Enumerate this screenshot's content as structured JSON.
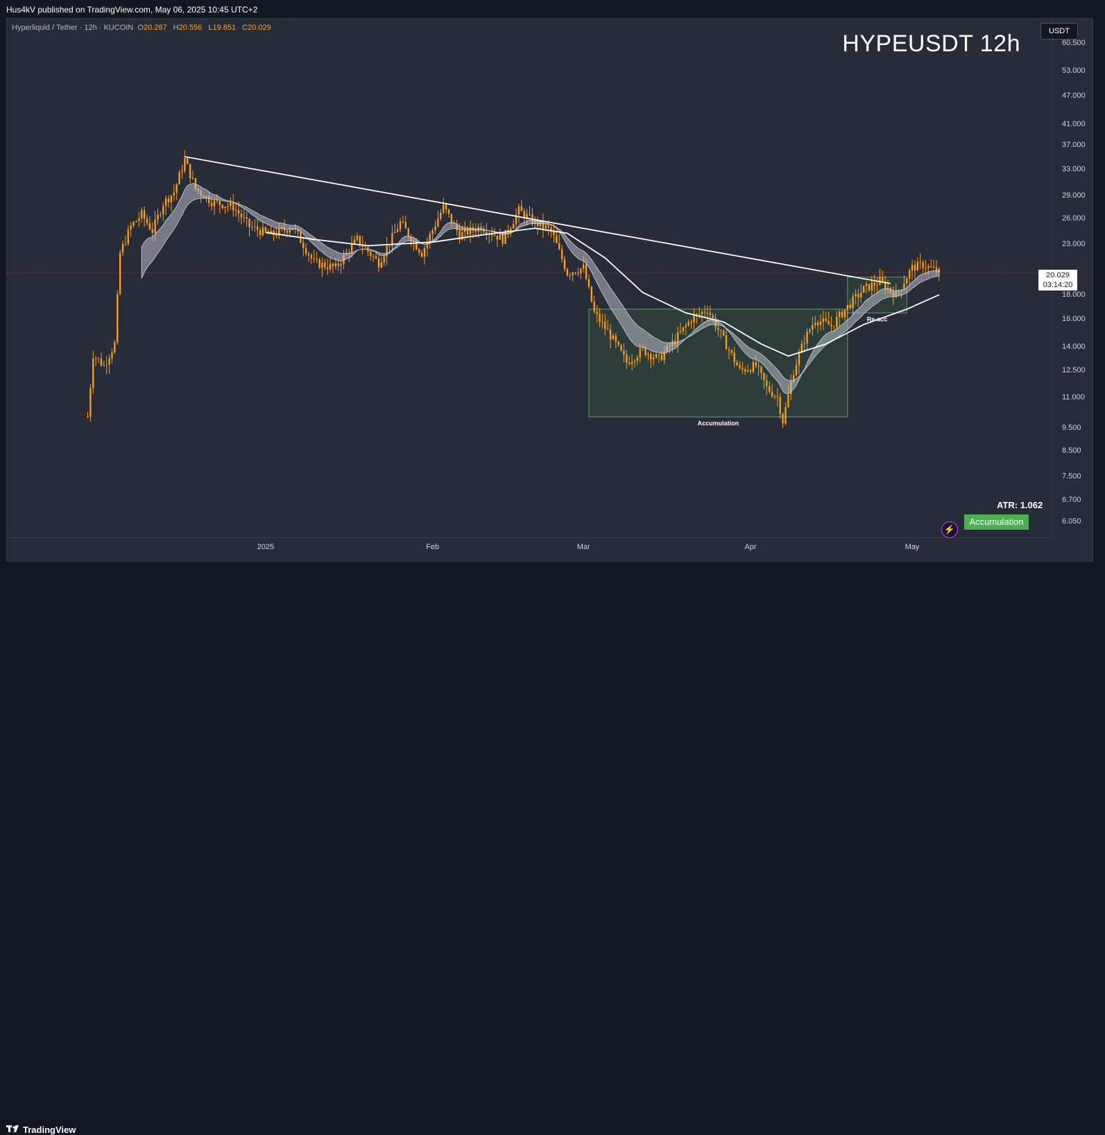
{
  "header": {
    "publish_line": "Hus4kV published on TradingView.com, May 06, 2025 10:45 UTC+2"
  },
  "legend": {
    "symbol": "Hyperliquid / Tether · 12h · KUCOIN",
    "o_label": "O",
    "o": "20.287",
    "h_label": "H",
    "h": "20.556",
    "l_label": "L",
    "l": "19.851",
    "c_label": "C",
    "c": "20.029"
  },
  "title": "HYPEUSDT 12h",
  "currency_button": "USDT",
  "last_price": {
    "value": "20.029",
    "countdown": "03:14:20"
  },
  "atr": "ATR: 1.062",
  "badge": "Accumulation",
  "footer": {
    "brand": "TradingView"
  },
  "colors": {
    "candle": "#ff9f1a",
    "bg": "#282c38",
    "box_fill": "#2e4a3d",
    "box_border": "#4caf50",
    "ma": "#ffffff"
  },
  "chart_data": {
    "type": "candlestick",
    "symbol": "HYPEUSDT",
    "interval": "12h",
    "y_scale": "log",
    "ylim": [
      5.6,
      68.0
    ],
    "y_ticks": [
      "60.500",
      "53.000",
      "47.000",
      "41.000",
      "37.000",
      "33.000",
      "29.000",
      "26.000",
      "23.000",
      "18.000",
      "16.000",
      "14.000",
      "12.500",
      "11.000",
      "9.500",
      "8.500",
      "7.500",
      "6.700",
      "6.050"
    ],
    "x_ticks": [
      "2025",
      "Feb",
      "Mar",
      "Apr",
      "May"
    ],
    "x_tick_dates": [
      "2025-01-01",
      "2025-02-01",
      "2025-03-01",
      "2025-04-01",
      "2025-05-01"
    ],
    "xlim": [
      "2024-11-14",
      "2025-05-27"
    ],
    "last_price": 20.029,
    "price_path": [
      [
        "2024-11-29",
        10.0
      ],
      [
        "2024-11-30",
        13.5
      ],
      [
        "2024-12-02",
        12.8
      ],
      [
        "2024-12-04",
        14.2
      ],
      [
        "2024-12-05",
        22.0
      ],
      [
        "2024-12-07",
        25.0
      ],
      [
        "2024-12-09",
        26.5
      ],
      [
        "2024-12-11",
        24.5
      ],
      [
        "2024-12-13",
        28.0
      ],
      [
        "2024-12-15",
        29.5
      ],
      [
        "2024-12-17",
        34.5
      ],
      [
        "2024-12-19",
        30.0
      ],
      [
        "2024-12-22",
        28.2
      ],
      [
        "2024-12-26",
        27.5
      ],
      [
        "2024-12-29",
        25.0
      ],
      [
        "2025-01-02",
        24.0
      ],
      [
        "2025-01-06",
        25.0
      ],
      [
        "2025-01-10",
        21.0
      ],
      [
        "2025-01-14",
        20.5
      ],
      [
        "2025-01-18",
        23.5
      ],
      [
        "2025-01-22",
        21.0
      ],
      [
        "2025-01-26",
        25.5
      ],
      [
        "2025-01-30",
        22.0
      ],
      [
        "2025-02-03",
        27.5
      ],
      [
        "2025-02-06",
        24.0
      ],
      [
        "2025-02-10",
        25.0
      ],
      [
        "2025-02-14",
        23.5
      ],
      [
        "2025-02-17",
        27.0
      ],
      [
        "2025-02-20",
        25.5
      ],
      [
        "2025-02-23",
        24.5
      ],
      [
        "2025-02-26",
        20.0
      ],
      [
        "2025-03-01",
        20.5
      ],
      [
        "2025-03-03",
        16.5
      ],
      [
        "2025-03-06",
        14.8
      ],
      [
        "2025-03-09",
        13.0
      ],
      [
        "2025-03-12",
        13.8
      ],
      [
        "2025-03-15",
        13.2
      ],
      [
        "2025-03-18",
        14.5
      ],
      [
        "2025-03-21",
        16.0
      ],
      [
        "2025-03-24",
        16.8
      ],
      [
        "2025-03-27",
        14.5
      ],
      [
        "2025-03-30",
        12.5
      ],
      [
        "2025-04-02",
        12.8
      ],
      [
        "2025-04-04",
        11.5
      ],
      [
        "2025-04-06",
        11.0
      ],
      [
        "2025-04-07",
        9.8
      ],
      [
        "2025-04-09",
        12.5
      ],
      [
        "2025-04-11",
        14.5
      ],
      [
        "2025-04-13",
        16.0
      ],
      [
        "2025-04-16",
        15.5
      ],
      [
        "2025-04-19",
        17.0
      ],
      [
        "2025-04-22",
        18.5
      ],
      [
        "2025-04-25",
        19.2
      ],
      [
        "2025-04-28",
        18.0
      ],
      [
        "2025-05-01",
        20.5
      ],
      [
        "2025-05-03",
        20.8
      ],
      [
        "2025-05-06",
        20.029
      ]
    ],
    "moving_average": [
      [
        "2025-01-01",
        24.3
      ],
      [
        "2025-01-10",
        23.5
      ],
      [
        "2025-01-20",
        22.8
      ],
      [
        "2025-02-01",
        23.2
      ],
      [
        "2025-02-10",
        24.0
      ],
      [
        "2025-02-20",
        24.8
      ],
      [
        "2025-02-26",
        24.2
      ],
      [
        "2025-03-05",
        21.5
      ],
      [
        "2025-03-12",
        18.2
      ],
      [
        "2025-03-20",
        16.5
      ],
      [
        "2025-03-27",
        15.8
      ],
      [
        "2025-04-03",
        14.2
      ],
      [
        "2025-04-08",
        13.4
      ],
      [
        "2025-04-15",
        14.2
      ],
      [
        "2025-04-22",
        15.6
      ],
      [
        "2025-04-30",
        16.8
      ],
      [
        "2025-05-06",
        18.0
      ]
    ],
    "trendline": [
      [
        "2024-12-17",
        35.0
      ],
      [
        "2025-04-27",
        19.0
      ]
    ],
    "annotations": [
      {
        "label": "Accumulation",
        "x0": "2025-03-02",
        "x1": "2025-04-19",
        "y0": 10.0,
        "y1": 16.8
      },
      {
        "label": "Re-acc",
        "x0": "2025-04-19",
        "x1": "2025-04-30",
        "y0": 16.5,
        "y1": 19.6
      }
    ]
  }
}
